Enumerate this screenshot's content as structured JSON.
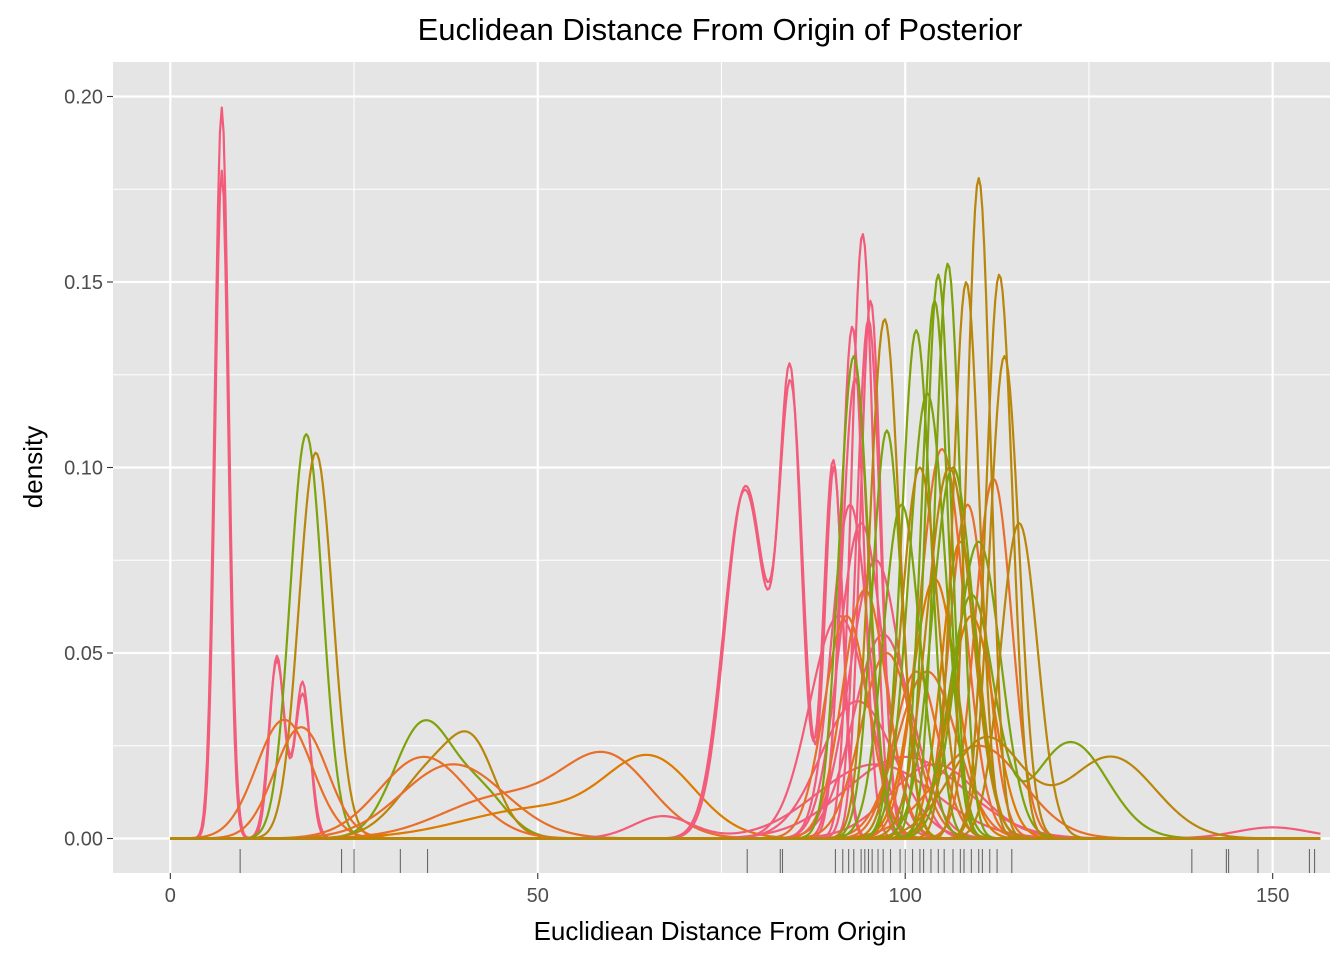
{
  "chart_data": {
    "type": "line",
    "title": "Euclidean Distance From Origin of Posterior",
    "xlabel": "Euclidiean Distance From Origin",
    "ylabel": "density",
    "xlim": [
      -7.8,
      157.8
    ],
    "ylim": [
      -0.0093,
      0.2093
    ],
    "x_ticks": [
      0,
      50,
      100,
      150
    ],
    "x_tick_labels": [
      "0",
      "50",
      "100",
      "150"
    ],
    "y_ticks": [
      0,
      0.05,
      0.1,
      0.15,
      0.2
    ],
    "y_tick_labels": [
      "0.00",
      "0.05",
      "0.10",
      "0.15",
      "0.20"
    ],
    "grid": true,
    "legend": "none",
    "colors": {
      "panel": "#e5e5e5",
      "grid": "#ffffff",
      "pink": "#f25c7a",
      "orange": "#e86f2a",
      "dark_orange": "#dd7a00",
      "gold": "#b8860b",
      "olive": "#7ea20c",
      "rug": "#000000"
    },
    "series": [
      {
        "color": "pink",
        "components": [
          [
            7,
            0.9,
            0.18
          ],
          [
            14.5,
            1.0,
            0.049
          ],
          [
            18,
            1.1,
            0.039
          ]
        ]
      },
      {
        "color": "pink",
        "components": [
          [
            7,
            0.95,
            0.197
          ],
          [
            14.5,
            1.1,
            0.048
          ],
          [
            18,
            1.0,
            0.042
          ]
        ]
      },
      {
        "color": "olive",
        "components": [
          [
            18.5,
            2.2,
            0.109
          ]
        ]
      },
      {
        "color": "gold",
        "components": [
          [
            19.8,
            2.3,
            0.104
          ]
        ]
      },
      {
        "color": "orange",
        "components": [
          [
            15.5,
            3.8,
            0.032
          ]
        ]
      },
      {
        "color": "orange",
        "components": [
          [
            17.8,
            3.6,
            0.03
          ]
        ]
      },
      {
        "color": "olive",
        "components": [
          [
            34.5,
            4.0,
            0.031
          ],
          [
            42.5,
            3.5,
            0.011
          ]
        ]
      },
      {
        "color": "gold",
        "components": [
          [
            36.5,
            5.0,
            0.02
          ],
          [
            41.5,
            3.0,
            0.015
          ]
        ]
      },
      {
        "color": "orange",
        "components": [
          [
            34.5,
            6.0,
            0.022
          ]
        ]
      },
      {
        "color": "orange",
        "components": [
          [
            38.5,
            7.0,
            0.02
          ]
        ]
      },
      {
        "color": "orange",
        "components": [
          [
            59.5,
            6.0,
            0.021
          ],
          [
            45,
            8.0,
            0.011
          ]
        ]
      },
      {
        "color": "dark_orange",
        "components": [
          [
            65.5,
            6.0,
            0.02
          ],
          [
            50,
            10.0,
            0.008
          ]
        ]
      },
      {
        "color": "pink",
        "components": [
          [
            78.3,
            2.8,
            0.095
          ],
          [
            84.5,
            1.6,
            0.115
          ],
          [
            90.3,
            1.2,
            0.1
          ]
        ]
      },
      {
        "color": "pink",
        "components": [
          [
            78.2,
            2.9,
            0.094
          ],
          [
            84.4,
            1.5,
            0.118
          ],
          [
            90.2,
            1.3,
            0.102
          ]
        ]
      },
      {
        "color": "pink",
        "components": [
          [
            94.2,
            1.5,
            0.163
          ]
        ]
      },
      {
        "color": "pink",
        "components": [
          [
            95.3,
            1.4,
            0.145
          ]
        ]
      },
      {
        "color": "pink",
        "components": [
          [
            95.0,
            1.6,
            0.14
          ]
        ]
      },
      {
        "color": "pink",
        "components": [
          [
            92.8,
            1.5,
            0.138
          ]
        ]
      },
      {
        "color": "pink",
        "components": [
          [
            93.2,
            1.8,
            0.124
          ]
        ]
      },
      {
        "color": "pink",
        "components": [
          [
            92.5,
            2.5,
            0.09
          ]
        ]
      },
      {
        "color": "pink",
        "components": [
          [
            94.0,
            3.0,
            0.085
          ]
        ]
      },
      {
        "color": "pink",
        "components": [
          [
            96.0,
            3.5,
            0.075
          ]
        ]
      },
      {
        "color": "pink",
        "components": [
          [
            91.0,
            4.0,
            0.06
          ]
        ]
      },
      {
        "color": "pink",
        "components": [
          [
            97.0,
            4.0,
            0.055
          ]
        ]
      },
      {
        "color": "pink",
        "components": [
          [
            93.5,
            5.0,
            0.037
          ],
          [
            150,
            5.0,
            0.003
          ]
        ]
      },
      {
        "color": "pink",
        "components": [
          [
            67.0,
            4.0,
            0.006
          ],
          [
            96,
            8.0,
            0.02
          ]
        ]
      },
      {
        "color": "pink",
        "components": [
          [
            100.0,
            8.0,
            0.022
          ]
        ]
      },
      {
        "color": "pink",
        "components": [
          [
            104.0,
            6.0,
            0.02
          ]
        ]
      },
      {
        "color": "orange",
        "components": [
          [
            92.0,
            3.0,
            0.06
          ]
        ]
      },
      {
        "color": "orange",
        "components": [
          [
            94.5,
            3.0,
            0.067
          ]
        ]
      },
      {
        "color": "orange",
        "components": [
          [
            97.5,
            3.5,
            0.05
          ]
        ]
      },
      {
        "color": "orange",
        "components": [
          [
            101.5,
            3.0,
            0.045
          ]
        ]
      },
      {
        "color": "orange",
        "components": [
          [
            105.0,
            3.0,
            0.105
          ]
        ]
      },
      {
        "color": "orange",
        "components": [
          [
            108.5,
            2.5,
            0.09
          ]
        ]
      },
      {
        "color": "orange",
        "components": [
          [
            112.0,
            2.5,
            0.097
          ]
        ]
      },
      {
        "color": "orange",
        "components": [
          [
            103.0,
            4.0,
            0.045
          ]
        ]
      },
      {
        "color": "orange",
        "components": [
          [
            110.0,
            6.0,
            0.025
          ]
        ]
      },
      {
        "color": "dark_orange",
        "components": [
          [
            107.5,
            2.5,
            0.08
          ]
        ]
      },
      {
        "color": "dark_orange",
        "components": [
          [
            109.0,
            3.0,
            0.06
          ]
        ]
      },
      {
        "color": "dark_orange",
        "components": [
          [
            104.0,
            3.0,
            0.07
          ]
        ]
      },
      {
        "color": "olive",
        "components": [
          [
            93.0,
            2.0,
            0.13
          ]
        ]
      },
      {
        "color": "olive",
        "components": [
          [
            97.5,
            2.0,
            0.11
          ]
        ]
      },
      {
        "color": "olive",
        "components": [
          [
            101.5,
            2.0,
            0.137
          ]
        ]
      },
      {
        "color": "olive",
        "components": [
          [
            104.0,
            1.8,
            0.145
          ]
        ]
      },
      {
        "color": "olive",
        "components": [
          [
            104.5,
            1.7,
            0.152
          ]
        ]
      },
      {
        "color": "olive",
        "components": [
          [
            105.8,
            1.7,
            0.155
          ]
        ]
      },
      {
        "color": "olive",
        "components": [
          [
            103.0,
            2.5,
            0.12
          ]
        ]
      },
      {
        "color": "olive",
        "components": [
          [
            106.5,
            2.8,
            0.1
          ]
        ]
      },
      {
        "color": "olive",
        "components": [
          [
            99.5,
            2.5,
            0.09
          ]
        ]
      },
      {
        "color": "olive",
        "components": [
          [
            110.0,
            3.0,
            0.08
          ]
        ]
      },
      {
        "color": "olive",
        "components": [
          [
            109.0,
            3.0,
            0.065
          ],
          [
            122.5,
            5.0,
            0.026
          ]
        ]
      },
      {
        "color": "gold",
        "components": [
          [
            110.0,
            1.6,
            0.178
          ]
        ]
      },
      {
        "color": "gold",
        "components": [
          [
            112.8,
            1.8,
            0.152
          ]
        ]
      },
      {
        "color": "gold",
        "components": [
          [
            108.3,
            1.8,
            0.15
          ]
        ]
      },
      {
        "color": "gold",
        "components": [
          [
            97.2,
            2.0,
            0.14
          ]
        ]
      },
      {
        "color": "gold",
        "components": [
          [
            113.5,
            2.0,
            0.13
          ]
        ]
      },
      {
        "color": "gold",
        "components": [
          [
            102.0,
            2.5,
            0.1
          ]
        ]
      },
      {
        "color": "gold",
        "components": [
          [
            106.0,
            3.0,
            0.1
          ]
        ]
      },
      {
        "color": "gold",
        "components": [
          [
            115.5,
            2.5,
            0.085
          ]
        ]
      },
      {
        "color": "gold",
        "components": [
          [
            111.0,
            5.0,
            0.027
          ],
          [
            128.0,
            6.0,
            0.022
          ]
        ]
      }
    ],
    "rug": [
      9.5,
      23.3,
      25.0,
      31.3,
      35.0,
      78.5,
      83.0,
      83.3,
      90.5,
      91.5,
      92.3,
      93.0,
      94.0,
      94.5,
      95.0,
      95.5,
      96.3,
      97.0,
      98.0,
      99.3,
      100.0,
      101.0,
      102.0,
      102.5,
      103.5,
      104.5,
      105.3,
      106.5,
      107.5,
      108.0,
      109.0,
      110.0,
      110.5,
      111.5,
      112.5,
      114.5,
      139.0,
      143.7,
      144.0,
      148.0,
      155.0,
      155.7
    ]
  }
}
